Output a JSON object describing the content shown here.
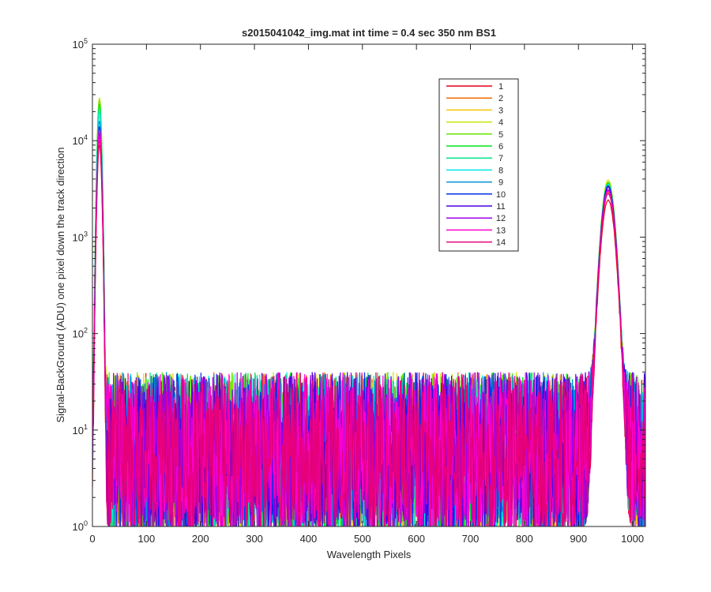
{
  "chart_data": {
    "type": "line",
    "title": "s2015041042_img.mat int time = 0.4 sec  350 nm BS1",
    "xlabel": "Wavelength Pixels",
    "ylabel": "Signal-BackGround (ADU) one pixel down the track direction",
    "xlim": [
      0,
      1024
    ],
    "ylim": [
      1,
      100000
    ],
    "yscale": "log",
    "grid": false,
    "legend_position": "top-right-inside",
    "x_ticks": [
      "0",
      "100",
      "200",
      "300",
      "400",
      "500",
      "600",
      "700",
      "800",
      "900",
      "1000"
    ],
    "x_tick_values": [
      0,
      100,
      200,
      300,
      400,
      500,
      600,
      700,
      800,
      900,
      1000
    ],
    "y_ticks": [
      {
        "base": "10",
        "exp": "0",
        "value": 1
      },
      {
        "base": "10",
        "exp": "1",
        "value": 10
      },
      {
        "base": "10",
        "exp": "2",
        "value": 100
      },
      {
        "base": "10",
        "exp": "3",
        "value": 1000
      },
      {
        "base": "10",
        "exp": "4",
        "value": 10000
      },
      {
        "base": "10",
        "exp": "5",
        "value": 100000
      }
    ],
    "features": {
      "peak1": {
        "center": 13,
        "width": 3,
        "height": 24000
      },
      "peak2": {
        "center": 955,
        "width": 9,
        "height": 3300
      },
      "noise_range": [
        1,
        40
      ]
    },
    "series": [
      {
        "name": "1",
        "color": "#e6001a",
        "peak1": 9000,
        "peak2": 2400
      },
      {
        "name": "2",
        "color": "#f26b00",
        "peak1": 12000,
        "peak2": 2900
      },
      {
        "name": "3",
        "color": "#f5c400",
        "peak1": 18000,
        "peak2": 3400
      },
      {
        "name": "4",
        "color": "#c8e600",
        "peak1": 28000,
        "peak2": 3900
      },
      {
        "name": "5",
        "color": "#62e600",
        "peak1": 26000,
        "peak2": 3700
      },
      {
        "name": "6",
        "color": "#00e61a",
        "peak1": 24000,
        "peak2": 3600
      },
      {
        "name": "7",
        "color": "#00e68a",
        "peak1": 22000,
        "peak2": 3500
      },
      {
        "name": "8",
        "color": "#00e6e6",
        "peak1": 20000,
        "peak2": 3500
      },
      {
        "name": "9",
        "color": "#0090d8",
        "peak1": 16000,
        "peak2": 3300
      },
      {
        "name": "10",
        "color": "#0030e6",
        "peak1": 14000,
        "peak2": 3400
      },
      {
        "name": "11",
        "color": "#4a00e6",
        "peak1": 12000,
        "peak2": 3300
      },
      {
        "name": "12",
        "color": "#a000e6",
        "peak1": 11000,
        "peak2": 3100
      },
      {
        "name": "13",
        "color": "#ff00d0",
        "peak1": 13000,
        "peak2": 3000
      },
      {
        "name": "14",
        "color": "#e6007a",
        "peak1": 10000,
        "peak2": 2800
      }
    ]
  }
}
